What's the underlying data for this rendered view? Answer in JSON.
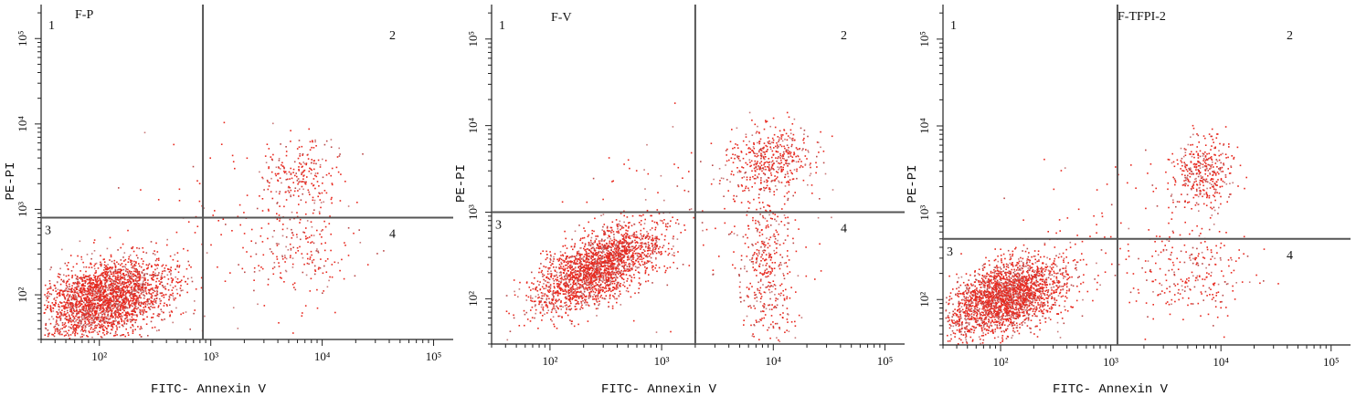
{
  "chart_data": [
    {
      "type": "scatter",
      "title": "F-P",
      "xlabel": "FITC- Annexin V",
      "ylabel": "PE-PI",
      "scale": "log",
      "xlim": [
        30,
        150000
      ],
      "ylim": [
        30,
        250000
      ],
      "x_ticks": [
        "10²",
        "10³",
        "10⁴",
        "10⁵"
      ],
      "y_ticks": [
        "10²",
        "10³",
        "10⁴",
        "10⁵"
      ],
      "gate": {
        "x": 850,
        "y": 800
      },
      "quadrants": [
        "1",
        "2",
        "3",
        "4"
      ],
      "color": "#e8281e",
      "populations": [
        {
          "quadrant": "3",
          "center": [
            110,
            90
          ],
          "spread": [
            0.3,
            0.22
          ],
          "tilt": 0.35,
          "fraction": 0.84
        },
        {
          "quadrant": "2",
          "center": [
            6200,
            2700
          ],
          "spread": [
            0.18,
            0.22
          ],
          "tilt": 0.2,
          "fraction": 0.07
        },
        {
          "quadrant": "4",
          "center": [
            6000,
            320
          ],
          "spread": [
            0.25,
            0.3
          ],
          "tilt": 0.0,
          "fraction": 0.06
        },
        {
          "quadrant": "diffuse",
          "center": [
            1200,
            500
          ],
          "spread": [
            0.55,
            0.55
          ],
          "tilt": 0.0,
          "fraction": 0.03
        }
      ]
    },
    {
      "type": "scatter",
      "title": "F-V",
      "xlabel": "FITC- Annexin V",
      "ylabel": "PE-PI",
      "scale": "log",
      "xlim": [
        30,
        150000
      ],
      "ylim": [
        30,
        250000
      ],
      "x_ticks": [
        "10²",
        "10³",
        "10⁴",
        "10⁵"
      ],
      "y_ticks": [
        "10²",
        "10³",
        "10⁴",
        "10⁵"
      ],
      "gate": {
        "x": 2000,
        "y": 1000
      },
      "quadrants": [
        "1",
        "2",
        "3",
        "4"
      ],
      "color": "#e8281e",
      "populations": [
        {
          "quadrant": "3",
          "center": [
            260,
            230
          ],
          "spread": [
            0.28,
            0.2
          ],
          "tilt": 0.75,
          "fraction": 0.7
        },
        {
          "quadrant": "2",
          "center": [
            9500,
            4200
          ],
          "spread": [
            0.2,
            0.2
          ],
          "tilt": 0.1,
          "fraction": 0.14
        },
        {
          "quadrant": "4",
          "center": [
            9000,
            200
          ],
          "spread": [
            0.12,
            0.45
          ],
          "tilt": 0.0,
          "fraction": 0.12
        },
        {
          "quadrant": "diffuse",
          "center": [
            2000,
            700
          ],
          "spread": [
            0.5,
            0.55
          ],
          "tilt": 0.0,
          "fraction": 0.04
        }
      ]
    },
    {
      "type": "scatter",
      "title": "F-TFPI-2",
      "xlabel": "FITC- Annexin V",
      "ylabel": "PE-PI",
      "scale": "log",
      "xlim": [
        30,
        150000
      ],
      "ylim": [
        30,
        250000
      ],
      "x_ticks": [
        "10²",
        "10³",
        "10⁴",
        "10⁵"
      ],
      "y_ticks": [
        "10²",
        "10³",
        "10⁴",
        "10⁵"
      ],
      "gate": {
        "x": 1150,
        "y": 500
      },
      "quadrants": [
        "1",
        "2",
        "3",
        "4"
      ],
      "color": "#e8281e",
      "populations": [
        {
          "quadrant": "3",
          "center": [
            110,
            110
          ],
          "spread": [
            0.27,
            0.2
          ],
          "tilt": 0.5,
          "fraction": 0.78
        },
        {
          "quadrant": "2",
          "center": [
            6800,
            3000
          ],
          "spread": [
            0.14,
            0.22
          ],
          "tilt": 0.1,
          "fraction": 0.12
        },
        {
          "quadrant": "4",
          "center": [
            6000,
            200
          ],
          "spread": [
            0.25,
            0.28
          ],
          "tilt": 0.0,
          "fraction": 0.07
        },
        {
          "quadrant": "diffuse",
          "center": [
            1000,
            400
          ],
          "spread": [
            0.5,
            0.5
          ],
          "tilt": 0.0,
          "fraction": 0.03
        }
      ]
    }
  ]
}
